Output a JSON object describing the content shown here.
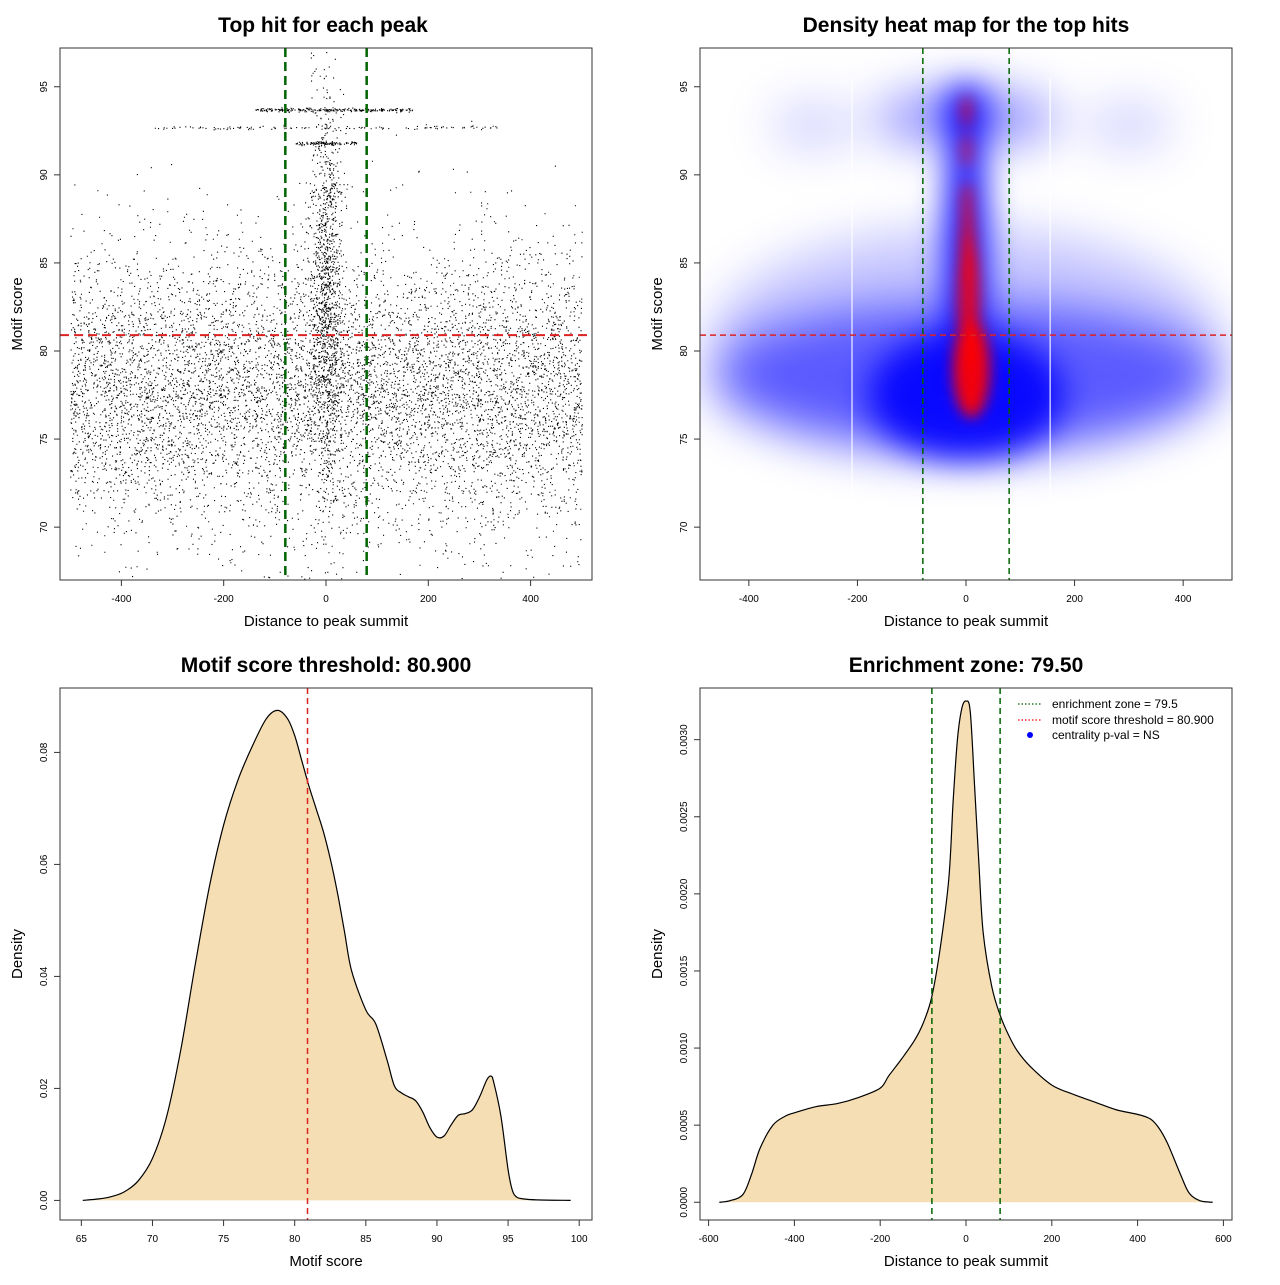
{
  "chart_data": [
    {
      "id": "p1",
      "type": "scatter",
      "title": "Top hit for each peak",
      "xlabel": "Distance to peak summit",
      "ylabel": "Motif score",
      "xlim": [
        -520,
        520
      ],
      "ylim": [
        67,
        97.2
      ],
      "xticks": [
        -400,
        -200,
        0,
        200,
        400
      ],
      "yticks": [
        70,
        75,
        80,
        85,
        90,
        95
      ],
      "hline": 80.9,
      "vlines": [
        -79.5,
        79.5
      ],
      "point_model": {
        "total_points": 9000,
        "x_range": [
          -500,
          500
        ],
        "background": {
          "weight": 0.86,
          "score_mean": 77.8,
          "score_sd": 4.0
        },
        "central": {
          "weight": 0.14,
          "x_sd": 16,
          "score_mean": 84,
          "score_sd": 5.5
        },
        "bands": [
          {
            "score": 93.7,
            "x_range": [
              -140,
              170
            ],
            "n": 250
          },
          {
            "score": 92.7,
            "x_range": [
              -340,
              340
            ],
            "n": 120
          },
          {
            "score": 91.8,
            "x_range": [
              -60,
              60
            ],
            "n": 100
          }
        ]
      }
    },
    {
      "id": "p2",
      "type": "heatmap",
      "title": "Density heat map for the top hits",
      "xlabel": "Distance to peak summit",
      "ylabel": "Motif score",
      "xlim": [
        -490,
        490
      ],
      "ylim": [
        67,
        97.2
      ],
      "xticks": [
        -400,
        -200,
        0,
        200,
        400
      ],
      "yticks": [
        70,
        75,
        80,
        85,
        90,
        95
      ],
      "hline": 80.9,
      "vlines": [
        -79.5,
        79.5
      ],
      "colors": {
        "low": "#ffffff",
        "mid": "#0000ff",
        "high": "#ff0000"
      }
    },
    {
      "id": "p3",
      "type": "area",
      "title": "Motif score threshold: 80.900",
      "xlabel": "Motif score",
      "ylabel": "Density",
      "xlim": [
        63.5,
        100.9
      ],
      "ylim": [
        -0.0035,
        0.0915
      ],
      "xticks": [
        65,
        70,
        75,
        80,
        85,
        90,
        95,
        100
      ],
      "yticks": [
        0,
        0.02,
        0.04,
        0.06,
        0.08
      ],
      "ytick_labels": [
        "0.00",
        "0.02",
        "0.04",
        "0.06",
        "0.08"
      ],
      "vline": 80.9,
      "x": [
        65.1,
        66,
        67,
        68,
        69,
        70,
        71,
        72,
        73,
        74,
        75,
        76,
        77,
        78,
        78.8,
        79.5,
        80,
        80.5,
        81,
        81.5,
        82,
        82.5,
        83,
        83.5,
        84,
        85,
        85.7,
        86.5,
        87,
        87.5,
        88,
        88.5,
        89,
        89.5,
        90,
        90.5,
        91,
        91.5,
        92,
        92.5,
        93,
        93.5,
        93.8,
        94,
        94.5,
        95,
        95.3,
        95.6,
        96,
        97,
        99.4
      ],
      "y": [
        0,
        0.0002,
        0.0006,
        0.0015,
        0.0035,
        0.0075,
        0.015,
        0.027,
        0.042,
        0.056,
        0.067,
        0.075,
        0.081,
        0.086,
        0.0875,
        0.086,
        0.083,
        0.0785,
        0.074,
        0.07,
        0.066,
        0.061,
        0.055,
        0.048,
        0.041,
        0.034,
        0.0315,
        0.025,
        0.0205,
        0.0192,
        0.0185,
        0.0178,
        0.0158,
        0.013,
        0.0113,
        0.0115,
        0.0135,
        0.0152,
        0.0155,
        0.0162,
        0.0185,
        0.0215,
        0.0222,
        0.021,
        0.015,
        0.0055,
        0.0018,
        0.0006,
        0.0003,
        0.0001,
        0
      ]
    },
    {
      "id": "p4",
      "type": "area",
      "title": "Enrichment zone: 79.50",
      "xlabel": "Distance to peak summit",
      "ylabel": "Density",
      "xlim": [
        -620,
        620
      ],
      "ylim": [
        -0.000115,
        0.003335
      ],
      "xticks": [
        -600,
        -400,
        -200,
        0,
        200,
        400,
        600
      ],
      "yticks": [
        0,
        0.0005,
        0.001,
        0.0015,
        0.002,
        0.0025,
        0.003
      ],
      "ytick_labels": [
        "0.0000",
        "0.0005",
        "0.0010",
        "0.0015",
        "0.0020",
        "0.0025",
        "0.0030"
      ],
      "vlines": [
        -79.5,
        79.5
      ],
      "x": [
        -575,
        -550,
        -520,
        -500,
        -480,
        -450,
        -420,
        -400,
        -350,
        -300,
        -250,
        -200,
        -180,
        -150,
        -120,
        -100,
        -80,
        -60,
        -40,
        -30,
        -20,
        -10,
        0,
        10,
        20,
        30,
        40,
        60,
        80,
        100,
        120,
        150,
        200,
        250,
        300,
        350,
        400,
        430,
        450,
        470,
        500,
        520,
        545,
        575
      ],
      "y": [
        0,
        1e-05,
        5e-05,
        0.00018,
        0.00035,
        0.0005,
        0.00056,
        0.00058,
        0.00062,
        0.00064,
        0.00068,
        0.00074,
        0.00082,
        0.00093,
        0.00105,
        0.00116,
        0.00133,
        0.00165,
        0.0021,
        0.0026,
        0.003,
        0.0032,
        0.00325,
        0.00318,
        0.0027,
        0.0022,
        0.00175,
        0.0014,
        0.00121,
        0.00108,
        0.00098,
        0.00088,
        0.00076,
        0.0007,
        0.00065,
        0.0006,
        0.00057,
        0.00054,
        0.00048,
        0.00038,
        0.00018,
        6e-05,
        1e-05,
        0
      ],
      "legend": {
        "position": "top-right",
        "entries": [
          {
            "label": "enrichment zone = 79.5",
            "color": "#006400",
            "style": "dotted-line"
          },
          {
            "label": "motif score threshold = 80.900",
            "color": "#ff0000",
            "style": "dotted-line"
          },
          {
            "label": "centrality p-val = NS",
            "color": "#0000ff",
            "style": "point"
          }
        ]
      }
    }
  ],
  "colors": {
    "threshold_line": "#dd2222",
    "zone_line": "#006400",
    "fill": "#f5deb3"
  }
}
